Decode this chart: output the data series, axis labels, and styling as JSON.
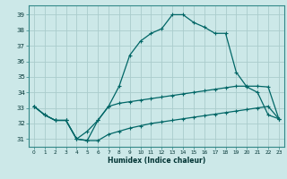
{
  "xlabel": "Humidex (Indice chaleur)",
  "bg_color": "#cce8e8",
  "grid_color": "#aacccc",
  "line_color": "#006666",
  "xlim": [
    -0.5,
    23.5
  ],
  "ylim": [
    30.5,
    39.6
  ],
  "xticks": [
    0,
    1,
    2,
    3,
    4,
    5,
    6,
    7,
    8,
    9,
    10,
    11,
    12,
    13,
    14,
    15,
    16,
    17,
    18,
    19,
    20,
    21,
    22,
    23
  ],
  "yticks": [
    31,
    32,
    33,
    34,
    35,
    36,
    37,
    38,
    39
  ],
  "line1_x": [
    0,
    1,
    2,
    3,
    4,
    5,
    6,
    7,
    8,
    9,
    10,
    11,
    12,
    13,
    14,
    15,
    16,
    17,
    18,
    19,
    20,
    21,
    22,
    23
  ],
  "line1_y": [
    33.1,
    32.55,
    32.2,
    32.2,
    31.0,
    31.5,
    32.2,
    33.1,
    33.3,
    33.4,
    33.5,
    33.6,
    33.7,
    33.8,
    33.9,
    34.0,
    34.1,
    34.2,
    34.3,
    34.4,
    34.4,
    34.4,
    34.35,
    32.3
  ],
  "line2_x": [
    0,
    1,
    2,
    3,
    4,
    5,
    6,
    7,
    8,
    9,
    10,
    11,
    12,
    13,
    14,
    15,
    16,
    17,
    18,
    19,
    20,
    21,
    22,
    23
  ],
  "line2_y": [
    33.1,
    32.55,
    32.2,
    32.2,
    31.0,
    30.9,
    32.2,
    33.1,
    34.4,
    36.4,
    37.3,
    37.8,
    38.1,
    39.0,
    39.0,
    38.5,
    38.2,
    37.8,
    37.8,
    35.3,
    34.35,
    34.0,
    32.55,
    32.3
  ],
  "line3_x": [
    0,
    1,
    2,
    3,
    4,
    5,
    6,
    7,
    8,
    9,
    10,
    11,
    12,
    13,
    14,
    15,
    16,
    17,
    18,
    19,
    20,
    21,
    22,
    23
  ],
  "line3_y": [
    33.1,
    32.55,
    32.2,
    32.2,
    31.0,
    30.9,
    30.9,
    31.3,
    31.5,
    31.7,
    31.85,
    32.0,
    32.1,
    32.2,
    32.3,
    32.4,
    32.5,
    32.6,
    32.7,
    32.8,
    32.9,
    33.0,
    33.1,
    32.3
  ]
}
